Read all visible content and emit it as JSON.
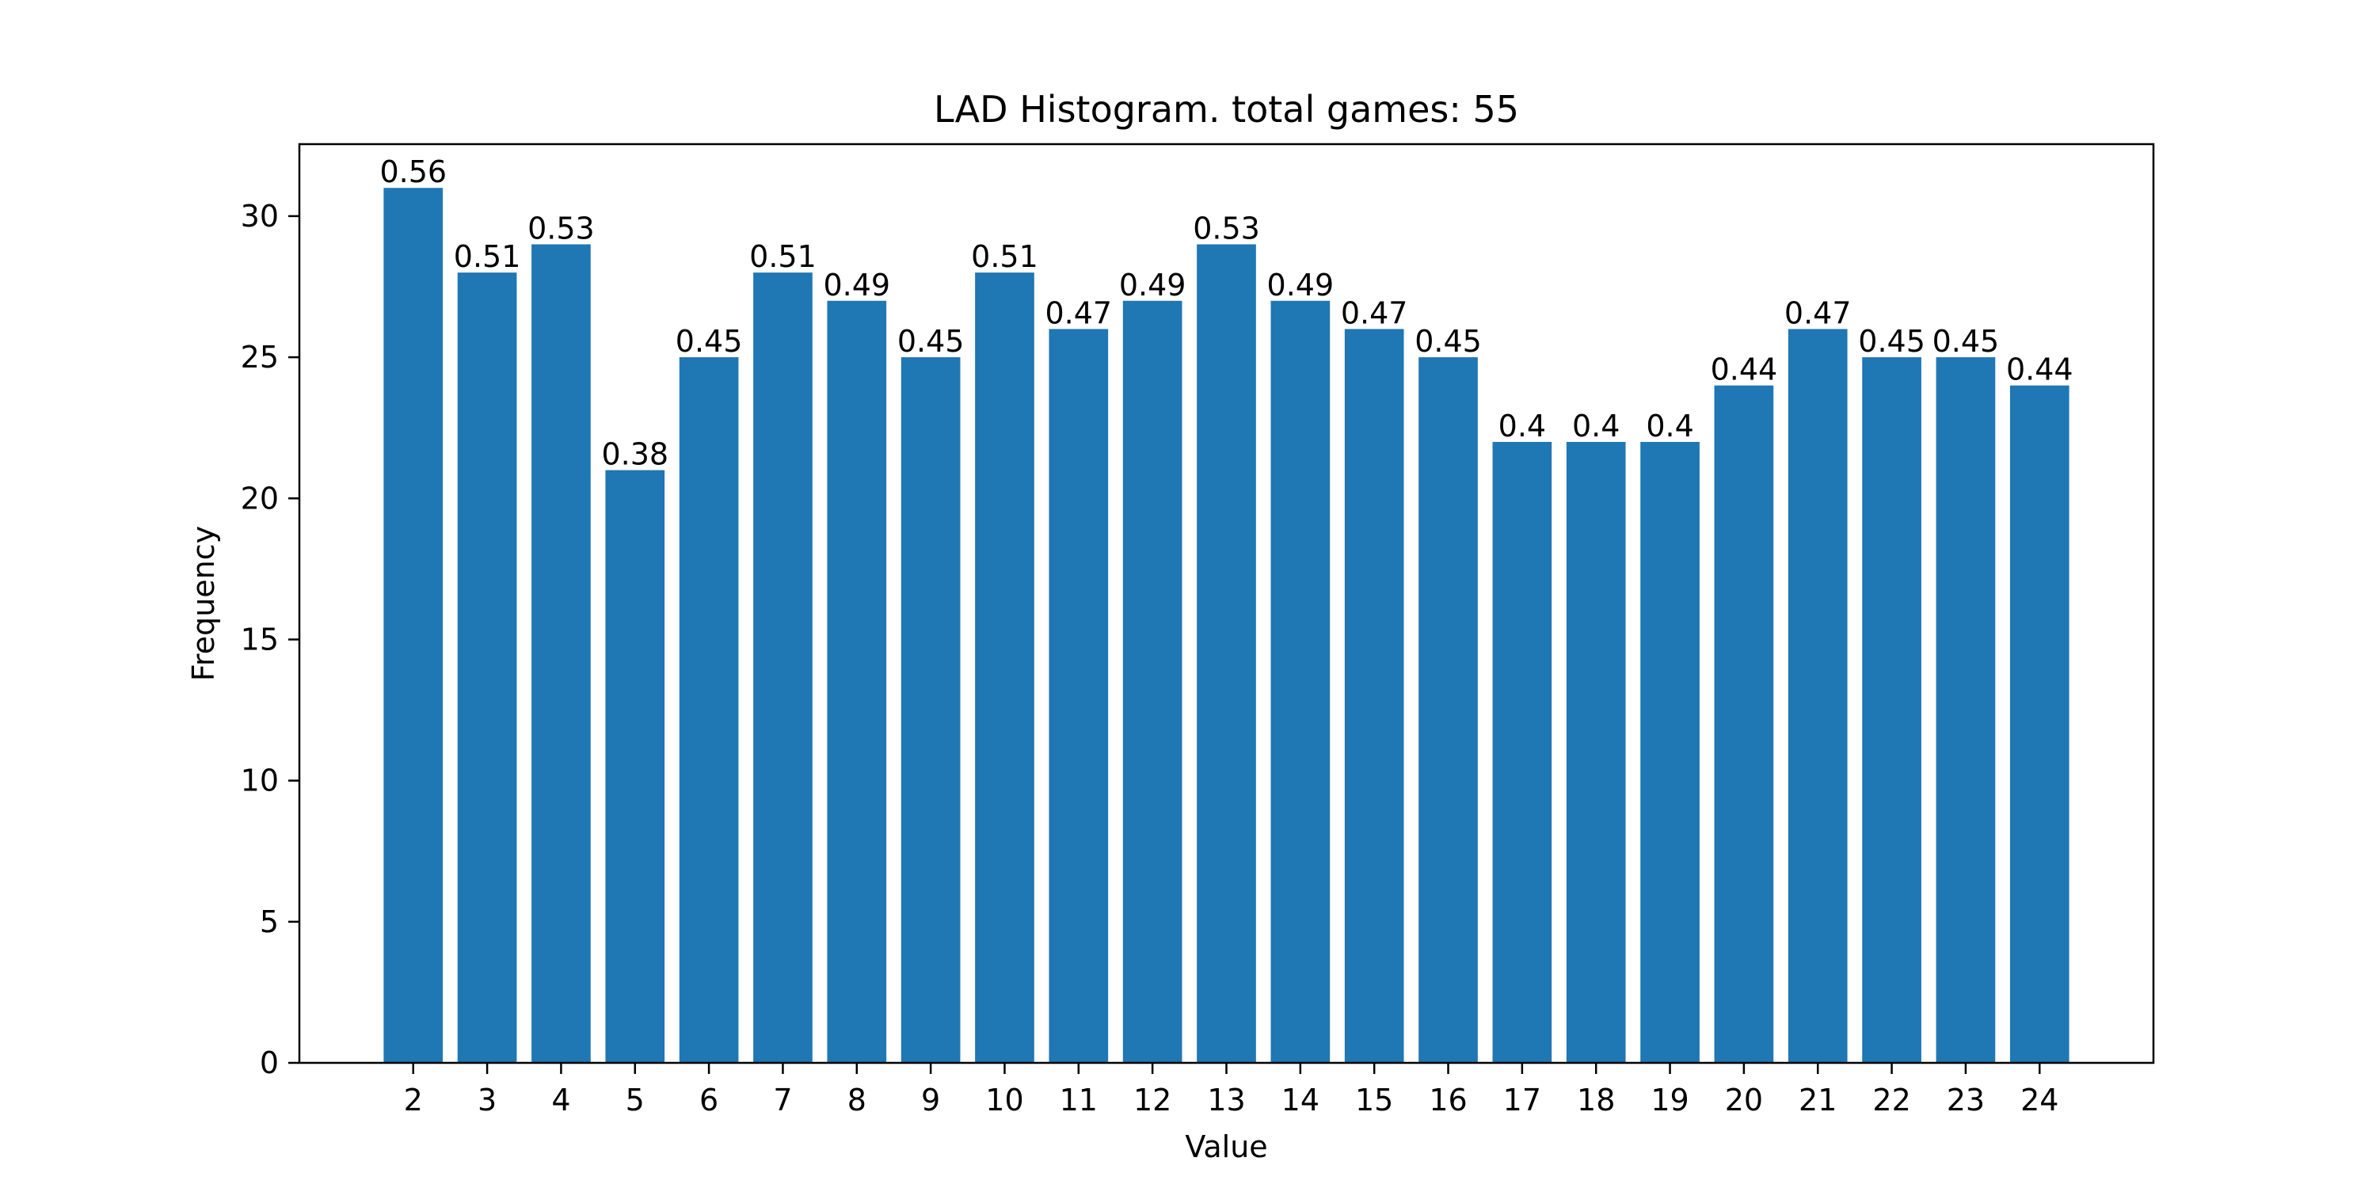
{
  "chart_data": {
    "type": "bar",
    "title": "LAD Histogram. total games: 55",
    "xlabel": "Value",
    "ylabel": "Frequency",
    "categories": [
      "2",
      "3",
      "4",
      "5",
      "6",
      "7",
      "8",
      "9",
      "10",
      "11",
      "12",
      "13",
      "14",
      "15",
      "16",
      "17",
      "18",
      "19",
      "20",
      "21",
      "22",
      "23",
      "24"
    ],
    "values": [
      31,
      28,
      29,
      21,
      25,
      28,
      27,
      25,
      28,
      26,
      27,
      29,
      27,
      26,
      25,
      22,
      22,
      22,
      24,
      26,
      25,
      25,
      24
    ],
    "bar_labels": [
      "0.56",
      "0.51",
      "0.53",
      "0.38",
      "0.45",
      "0.51",
      "0.49",
      "0.45",
      "0.51",
      "0.47",
      "0.49",
      "0.53",
      "0.49",
      "0.47",
      "0.45",
      "0.4",
      "0.4",
      "0.4",
      "0.44",
      "0.47",
      "0.45",
      "0.45",
      "0.44"
    ],
    "ylim": [
      0,
      32.55
    ],
    "yticks": [
      0,
      5,
      10,
      15,
      20,
      25,
      30
    ],
    "bar_color": "#1f77b4",
    "grid": false,
    "legend": "none"
  }
}
